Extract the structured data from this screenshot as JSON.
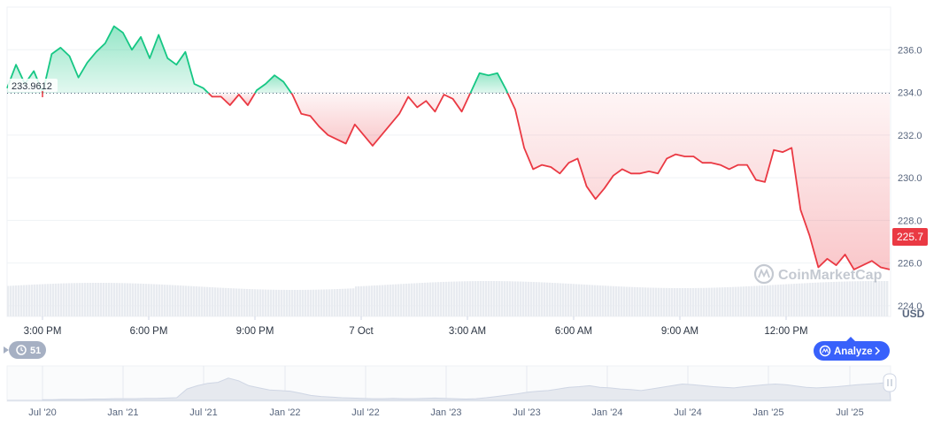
{
  "chart_data": {
    "type": "area",
    "baseline": 233.9612,
    "baseline_label": "233.9612",
    "current_value": 225.7,
    "current_label": "225.7",
    "currency_label": "USD",
    "ylim": [
      223.5,
      238.0
    ],
    "y_ticks": [
      224.0,
      226.0,
      228.0,
      230.0,
      232.0,
      234.0,
      236.0
    ],
    "y_tick_labels": [
      "224.0",
      "226.0",
      "228.0",
      "230.0",
      "232.0",
      "234.0",
      "236.0"
    ],
    "x_ticks": [
      "3:00 PM",
      "6:00 PM",
      "9:00 PM",
      "7 Oct",
      "3:00 AM",
      "6:00 AM",
      "9:00 AM",
      "12:00 PM"
    ],
    "x_values": [
      0,
      1,
      2,
      3,
      4,
      5,
      6,
      7,
      8,
      9,
      10,
      11,
      12,
      13,
      14,
      15,
      16,
      17,
      18,
      19,
      20,
      21,
      22,
      23,
      24,
      25,
      26,
      27,
      28,
      29,
      30,
      31,
      32,
      33,
      34,
      35,
      36,
      37,
      38,
      39,
      40,
      41,
      42,
      43,
      44,
      45,
      46,
      47,
      48,
      49,
      50,
      51,
      52,
      53,
      54,
      55,
      56,
      57,
      58,
      59,
      60,
      61,
      62,
      63,
      64,
      65,
      66,
      67,
      68,
      69,
      70,
      71,
      72,
      73,
      74,
      75,
      76,
      77,
      78,
      79,
      80,
      81,
      82,
      83,
      84,
      85,
      86,
      87,
      88,
      89,
      90,
      91,
      92,
      93,
      94,
      95,
      96,
      97,
      98,
      99
    ],
    "series": [
      {
        "values": [
          234.2,
          235.3,
          234.4,
          235.0,
          234.0,
          235.8,
          236.1,
          235.7,
          234.7,
          235.4,
          235.9,
          236.3,
          237.1,
          236.8,
          236.0,
          236.6,
          235.6,
          236.7,
          235.6,
          235.3,
          235.9,
          234.4,
          234.2,
          233.8,
          233.8,
          233.4,
          233.9,
          233.4,
          234.1,
          234.4,
          234.8,
          234.5,
          233.9,
          233.0,
          232.9,
          232.4,
          232.0,
          231.8,
          231.6,
          232.5,
          232.0,
          231.5,
          232.0,
          232.5,
          233.0,
          233.8,
          233.3,
          233.6,
          233.1,
          233.9,
          233.7,
          233.1,
          234.0,
          234.9,
          234.8,
          234.9,
          234.1,
          233.2,
          231.4,
          230.4,
          230.6,
          230.5,
          230.2,
          230.7,
          230.9,
          229.6,
          229.0,
          229.5,
          230.1,
          230.4,
          230.2,
          230.2,
          230.3,
          230.2,
          230.9,
          231.1,
          231.0,
          231.0,
          230.7,
          230.7,
          230.6,
          230.4,
          230.6,
          230.6,
          229.9,
          229.8,
          231.3,
          231.2,
          231.4,
          228.5,
          227.3,
          225.8,
          226.2,
          225.9,
          226.4,
          225.7,
          225.9,
          226.1,
          225.8,
          225.7
        ]
      }
    ],
    "navigator_x_labels": [
      "Jul '20",
      "Jan '21",
      "Jul '21",
      "Jan '22",
      "Jul '22",
      "Jan '23",
      "Jul '23",
      "Jan '24",
      "Jul '24",
      "Jan '25",
      "Jul '25"
    ],
    "navigator_values": [
      0.02,
      0.02,
      0.03,
      0.03,
      0.03,
      0.04,
      0.04,
      0.05,
      0.05,
      0.05,
      0.06,
      0.06,
      0.07,
      0.08,
      0.35,
      0.45,
      0.52,
      0.55,
      0.68,
      0.6,
      0.45,
      0.38,
      0.32,
      0.3,
      0.28,
      0.22,
      0.15,
      0.12,
      0.1,
      0.08,
      0.07,
      0.06,
      0.05,
      0.05,
      0.06,
      0.05,
      0.05,
      0.06,
      0.07,
      0.06,
      0.05,
      0.04,
      0.05,
      0.08,
      0.12,
      0.16,
      0.2,
      0.25,
      0.28,
      0.3,
      0.35,
      0.4,
      0.42,
      0.45,
      0.4,
      0.38,
      0.35,
      0.33,
      0.3,
      0.35,
      0.4,
      0.45,
      0.5,
      0.48,
      0.45,
      0.42,
      0.4,
      0.38,
      0.42,
      0.45,
      0.48,
      0.5,
      0.48,
      0.44,
      0.4,
      0.38,
      0.4,
      0.42,
      0.45,
      0.48,
      0.5,
      0.52,
      0.55
    ]
  },
  "ui": {
    "watermark_text": "CoinMarketCap",
    "analyze_label": "Analyze",
    "events_count": "51"
  },
  "colors": {
    "up": "#16c784",
    "down": "#ea3943",
    "grid": "#eff2f5",
    "analyze": "#3861fb",
    "badge": "#a6b0c3"
  }
}
